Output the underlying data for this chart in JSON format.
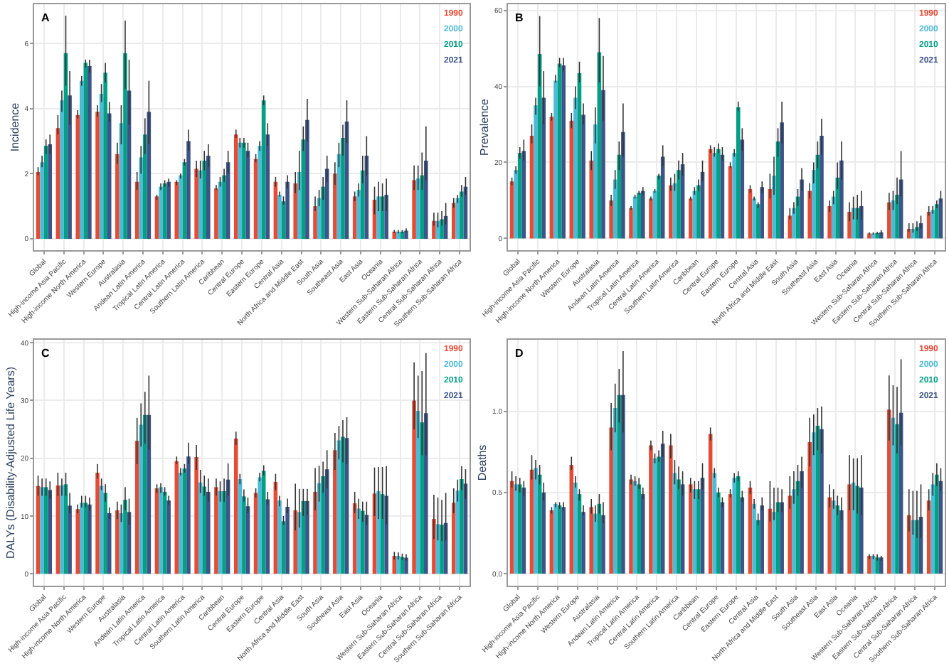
{
  "chart_data": [
    {
      "type": "bar",
      "title": "A",
      "ylabel": "Incidence",
      "grid": true,
      "legend": "top right",
      "categories": [
        "Global",
        "High-income Asia Pacific",
        "High-income North America",
        "Western Europe",
        "Australasia",
        "Andean Latin America",
        "Tropical Latin America",
        "Central Latin America",
        "Southern Latin America",
        "Caribbean",
        "Central Europe",
        "Eastern Europe",
        "Central Asia",
        "North Africa and Middle East",
        "South Asia",
        "Southeast Asia",
        "East Asia",
        "Oceania",
        "Western Sub-Saharan Africa",
        "Eastern Sub-Saharan Africa",
        "Central Sub-Saharan Africa",
        "Southern Sub-Saharan Africa"
      ],
      "ylim": [
        -0.35,
        7.2
      ],
      "yticks": [
        0,
        2,
        4,
        6
      ],
      "series": [
        {
          "name": "1990",
          "color": "#e64b35",
          "values": [
            2.05,
            3.4,
            3.8,
            3.9,
            2.6,
            1.75,
            1.3,
            1.75,
            2.15,
            1.55,
            3.2,
            2.45,
            1.75,
            1.7,
            1.0,
            2.0,
            1.3,
            1.2,
            0.22,
            1.8,
            0.55,
            1.1
          ],
          "errors": [
            [
              1.95,
              2.2
            ],
            [
              3.2,
              3.8
            ],
            [
              3.7,
              3.95
            ],
            [
              3.75,
              4.1
            ],
            [
              2.3,
              2.95
            ],
            [
              1.5,
              2.05
            ],
            [
              1.2,
              1.35
            ],
            [
              1.65,
              1.8
            ],
            [
              1.9,
              2.4
            ],
            [
              1.5,
              1.65
            ],
            [
              3.1,
              3.35
            ],
            [
              2.35,
              2.6
            ],
            [
              1.6,
              1.9
            ],
            [
              1.4,
              2.05
            ],
            [
              0.85,
              1.3
            ],
            [
              1.65,
              2.35
            ],
            [
              1.15,
              1.45
            ],
            [
              0.75,
              1.6
            ],
            [
              0.18,
              0.27
            ],
            [
              1.5,
              2.25
            ],
            [
              0.4,
              0.8
            ],
            [
              0.95,
              1.25
            ]
          ]
        },
        {
          "name": "2000",
          "color": "#4dbbd5",
          "values": [
            2.35,
            4.25,
            4.85,
            4.45,
            3.55,
            2.5,
            1.6,
            1.95,
            2.1,
            1.75,
            2.95,
            2.85,
            1.35,
            2.05,
            1.25,
            2.6,
            1.5,
            1.3,
            0.22,
            1.85,
            0.55,
            1.25
          ],
          "errors": [
            [
              2.2,
              2.55
            ],
            [
              3.9,
              4.55
            ],
            [
              4.7,
              5.0
            ],
            [
              4.2,
              4.75
            ],
            [
              2.9,
              4.1
            ],
            [
              2.0,
              2.85
            ],
            [
              1.5,
              1.7
            ],
            [
              1.85,
              2.0
            ],
            [
              1.85,
              2.4
            ],
            [
              1.6,
              1.9
            ],
            [
              2.8,
              3.1
            ],
            [
              2.7,
              3.0
            ],
            [
              1.3,
              1.45
            ],
            [
              1.5,
              2.7
            ],
            [
              1.0,
              1.5
            ],
            [
              2.2,
              2.95
            ],
            [
              1.3,
              1.7
            ],
            [
              0.85,
              1.75
            ],
            [
              0.17,
              0.27
            ],
            [
              1.5,
              2.25
            ],
            [
              0.35,
              0.8
            ],
            [
              1.1,
              1.35
            ]
          ]
        },
        {
          "name": "2010",
          "color": "#00a087",
          "values": [
            2.85,
            5.7,
            5.4,
            5.1,
            5.7,
            3.2,
            1.7,
            2.35,
            2.4,
            1.95,
            2.95,
            4.25,
            1.15,
            3.05,
            1.6,
            3.1,
            2.1,
            1.3,
            0.22,
            1.95,
            0.6,
            1.45
          ],
          "errors": [
            [
              2.6,
              3.05
            ],
            [
              4.7,
              6.85
            ],
            [
              5.25,
              5.5
            ],
            [
              4.8,
              5.4
            ],
            [
              4.6,
              6.7
            ],
            [
              2.6,
              3.7
            ],
            [
              1.6,
              1.8
            ],
            [
              2.25,
              2.45
            ],
            [
              2.1,
              2.7
            ],
            [
              1.75,
              2.15
            ],
            [
              2.8,
              3.1
            ],
            [
              4.1,
              4.4
            ],
            [
              1.05,
              1.3
            ],
            [
              2.7,
              3.45
            ],
            [
              1.2,
              1.9
            ],
            [
              2.55,
              3.5
            ],
            [
              1.7,
              2.55
            ],
            [
              0.85,
              1.7
            ],
            [
              0.17,
              0.27
            ],
            [
              1.5,
              2.65
            ],
            [
              0.4,
              0.85
            ],
            [
              1.3,
              1.65
            ]
          ]
        },
        {
          "name": "2021",
          "color": "#3c5488",
          "values": [
            2.9,
            4.4,
            5.3,
            3.85,
            4.55,
            3.9,
            1.75,
            3.0,
            2.55,
            2.35,
            2.7,
            3.2,
            1.75,
            3.65,
            2.15,
            3.6,
            2.55,
            1.35,
            0.25,
            2.4,
            0.7,
            1.6
          ],
          "errors": [
            [
              2.6,
              3.2
            ],
            [
              3.5,
              5.15
            ],
            [
              5.1,
              5.5
            ],
            [
              3.6,
              4.2
            ],
            [
              3.5,
              5.5
            ],
            [
              2.9,
              4.85
            ],
            [
              1.6,
              1.85
            ],
            [
              2.7,
              3.35
            ],
            [
              2.2,
              2.9
            ],
            [
              2.0,
              2.7
            ],
            [
              2.5,
              2.95
            ],
            [
              2.85,
              3.55
            ],
            [
              1.55,
              1.95
            ],
            [
              3.0,
              4.3
            ],
            [
              1.75,
              2.55
            ],
            [
              2.95,
              4.25
            ],
            [
              1.95,
              3.15
            ],
            [
              0.85,
              1.85
            ],
            [
              0.2,
              0.32
            ],
            [
              1.8,
              3.45
            ],
            [
              0.45,
              1.1
            ],
            [
              1.35,
              1.9
            ]
          ]
        }
      ]
    },
    {
      "type": "bar",
      "title": "B",
      "ylabel": "Prevalence",
      "grid": true,
      "legend": "top right",
      "categories": [
        "Global",
        "High-income Asia Pacific",
        "High-income North America",
        "Western Europe",
        "Australasia",
        "Andean Latin America",
        "Tropical Latin America",
        "Central Latin America",
        "Southern Latin America",
        "Caribbean",
        "Central Europe",
        "Eastern Europe",
        "Central Asia",
        "North Africa and Middle East",
        "South Asia",
        "Southeast Asia",
        "East Asia",
        "Oceania",
        "Western Sub-Saharan Africa",
        "Eastern Sub-Saharan Africa",
        "Central Sub-Saharan Africa",
        "Southern Sub-Saharan Africa"
      ],
      "ylim": [
        -3.1,
        61.6
      ],
      "yticks": [
        0,
        20,
        40,
        60
      ],
      "series": [
        {
          "name": "1990",
          "color": "#e64b35",
          "values": [
            15,
            27,
            32,
            31,
            20.5,
            10,
            8,
            10.5,
            14,
            10.5,
            23.5,
            19,
            13,
            13,
            6,
            12.5,
            8.5,
            7,
            1.3,
            9.5,
            2.5,
            7
          ],
          "errors": [
            [
              14,
              16
            ],
            [
              25,
              30
            ],
            [
              31,
              33
            ],
            [
              29,
              33
            ],
            [
              18,
              23
            ],
            [
              8.5,
              11.5
            ],
            [
              7.5,
              8.5
            ],
            [
              10,
              11
            ],
            [
              12.5,
              16
            ],
            [
              10,
              11
            ],
            [
              22.5,
              24.5
            ],
            [
              18.5,
              20
            ],
            [
              12,
              14
            ],
            [
              10.5,
              17
            ],
            [
              5,
              8
            ],
            [
              10.5,
              14.5
            ],
            [
              7,
              10
            ],
            [
              4.5,
              9.5
            ],
            [
              1.0,
              1.6
            ],
            [
              7.5,
              12
            ],
            [
              1.8,
              4
            ],
            [
              6,
              8.5
            ]
          ]
        },
        {
          "name": "2000",
          "color": "#4dbbd5",
          "values": [
            18,
            35,
            41.5,
            37,
            30,
            15.5,
            11,
            12.5,
            14.5,
            12.5,
            22.5,
            22.5,
            10.5,
            16.5,
            8,
            18,
            11,
            8,
            1.3,
            10,
            2.5,
            7.5
          ],
          "errors": [
            [
              17,
              19
            ],
            [
              32.5,
              37
            ],
            [
              41,
              43
            ],
            [
              34,
              40
            ],
            [
              25,
              34.5
            ],
            [
              13,
              18
            ],
            [
              10.5,
              11.5
            ],
            [
              12,
              13
            ],
            [
              12.5,
              17
            ],
            [
              11.5,
              13.5
            ],
            [
              21.5,
              24
            ],
            [
              21.5,
              23.5
            ],
            [
              10,
              11
            ],
            [
              11.5,
              21.5
            ],
            [
              6.5,
              9.5
            ],
            [
              14.5,
              20
            ],
            [
              9,
              12.5
            ],
            [
              5,
              11
            ],
            [
              1.0,
              1.6
            ],
            [
              7.5,
              12.5
            ],
            [
              1.5,
              4
            ],
            [
              6.5,
              8.5
            ]
          ]
        },
        {
          "name": "2010",
          "color": "#00a087",
          "values": [
            22.5,
            48.5,
            46,
            43.5,
            49,
            22,
            12,
            16.5,
            18,
            14,
            23.5,
            34.5,
            9,
            25.5,
            11,
            22,
            16,
            8,
            1.4,
            11.5,
            3,
            9
          ],
          "errors": [
            [
              21,
              24
            ],
            [
              40,
              58.5
            ],
            [
              45,
              47.5
            ],
            [
              41,
              46.5
            ],
            [
              41,
              58
            ],
            [
              18,
              25.5
            ],
            [
              11.5,
              12.5
            ],
            [
              15.5,
              17
            ],
            [
              15.5,
              20.5
            ],
            [
              12.5,
              15.5
            ],
            [
              22.5,
              25
            ],
            [
              33.5,
              36
            ],
            [
              8,
              9.5
            ],
            [
              21.5,
              29
            ],
            [
              8.5,
              13
            ],
            [
              18.5,
              25.5
            ],
            [
              13,
              20
            ],
            [
              5,
              11.5
            ],
            [
              1.1,
              1.7
            ],
            [
              9,
              16
            ],
            [
              2,
              4.5
            ],
            [
              8,
              10
            ]
          ]
        },
        {
          "name": "2021",
          "color": "#3c5488",
          "values": [
            23,
            37,
            45.5,
            32.5,
            39,
            28,
            12.5,
            21.5,
            19.5,
            17.5,
            22,
            26,
            13.5,
            30.5,
            15.5,
            27,
            20.5,
            8.5,
            1.6,
            15.5,
            4,
            10.5
          ],
          "errors": [
            [
              20.5,
              26
            ],
            [
              30,
              44
            ],
            [
              44,
              47.5
            ],
            [
              30,
              35.5
            ],
            [
              31,
              48
            ],
            [
              21.5,
              35.5
            ],
            [
              11.5,
              13.5
            ],
            [
              19,
              24.5
            ],
            [
              16.5,
              22.5
            ],
            [
              15,
              20.5
            ],
            [
              20.5,
              24
            ],
            [
              23,
              29
            ],
            [
              12,
              15
            ],
            [
              25,
              36
            ],
            [
              12.5,
              18.5
            ],
            [
              22,
              31.5
            ],
            [
              15.5,
              25.5
            ],
            [
              5,
              12.5
            ],
            [
              1.2,
              2.2
            ],
            [
              11,
              23
            ],
            [
              2.5,
              6
            ],
            [
              9.5,
              12.5
            ]
          ]
        }
      ]
    },
    {
      "type": "bar",
      "title": "C",
      "ylabel": "DALYs (Disability-Adjusted Life Years)",
      "grid": true,
      "legend": "top right",
      "categories": [
        "Global",
        "High-income Asia Pacific",
        "High-income North America",
        "Western Europe",
        "Australasia",
        "Andean Latin America",
        "Tropical Latin America",
        "Central Latin America",
        "Southern Latin America",
        "Caribbean",
        "Central Europe",
        "Eastern Europe",
        "Central Asia",
        "North Africa and Middle East",
        "South Asia",
        "Southeast Asia",
        "East Asia",
        "Oceania",
        "Western Sub-Saharan Africa",
        "Eastern Sub-Saharan Africa",
        "Central Sub-Saharan Africa",
        "Southern Sub-Saharan Africa"
      ],
      "ylim": [
        -2.05,
        40.5
      ],
      "yticks": [
        0,
        10,
        20,
        30,
        40
      ],
      "series": [
        {
          "name": "1990",
          "color": "#e64b35",
          "values": [
            15.2,
            15.3,
            11.2,
            17.5,
            11,
            23,
            14.8,
            19.5,
            20.2,
            15,
            23.4,
            14,
            15.9,
            11,
            14.2,
            21.4,
            12.2,
            13.9,
            3.1,
            30,
            9.5,
            12.3
          ],
          "errors": [
            [
              13.5,
              17
            ],
            [
              13.5,
              17.5
            ],
            [
              10.5,
              12
            ],
            [
              16.5,
              19
            ],
            [
              9.5,
              12.5
            ],
            [
              19,
              27
            ],
            [
              14,
              15.5
            ],
            [
              19,
              20.3
            ],
            [
              18,
              22.3
            ],
            [
              13.5,
              16.5
            ],
            [
              22.3,
              24.6
            ],
            [
              13.2,
              14.8
            ],
            [
              14.5,
              17.3
            ],
            [
              7.5,
              15.6
            ],
            [
              11,
              18.3
            ],
            [
              18,
              24.4
            ],
            [
              10.5,
              14.2
            ],
            [
              10,
              18.4
            ],
            [
              2.5,
              3.8
            ],
            [
              25,
              36.6
            ],
            [
              6,
              13.7
            ],
            [
              10.5,
              14.8
            ]
          ]
        },
        {
          "name": "2000",
          "color": "#4dbbd5",
          "values": [
            15,
            15.3,
            12.3,
            15.2,
            10.5,
            25.8,
            15,
            17.5,
            15.8,
            14.3,
            16.4,
            16.7,
            12.7,
            10.7,
            15.7,
            23.1,
            11.3,
            14.3,
            3.1,
            28.2,
            8.6,
            14.4
          ],
          "errors": [
            [
              13.5,
              16.5
            ],
            [
              13.5,
              16.5
            ],
            [
              11.5,
              13.5
            ],
            [
              14.5,
              16.5
            ],
            [
              9,
              12
            ],
            [
              22,
              29.5
            ],
            [
              14,
              15.7
            ],
            [
              17,
              18.3
            ],
            [
              14,
              18
            ],
            [
              12.5,
              16
            ],
            [
              15.5,
              17.3
            ],
            [
              16,
              17.5
            ],
            [
              11.7,
              13.5
            ],
            [
              8,
              14.7
            ],
            [
              12.5,
              18.7
            ],
            [
              19.8,
              25.6
            ],
            [
              9.5,
              13
            ],
            [
              9.5,
              18.5
            ],
            [
              2.5,
              3.7
            ],
            [
              23.5,
              34.3
            ],
            [
              5.8,
              13.2
            ],
            [
              12.5,
              16.3
            ]
          ]
        },
        {
          "name": "2010",
          "color": "#00a087",
          "values": [
            15,
            15.5,
            12.3,
            14,
            12.8,
            27.5,
            14.2,
            18.2,
            15.1,
            14.3,
            13.4,
            17.8,
            9.1,
            12.6,
            16.9,
            23.7,
            10.9,
            13.8,
            2.9,
            26.2,
            8.5,
            16.4
          ],
          "errors": [
            [
              13.5,
              16.5
            ],
            [
              13.5,
              17.5
            ],
            [
              11.5,
              13.5
            ],
            [
              12.5,
              15.5
            ],
            [
              11,
              15
            ],
            [
              22.5,
              31.5
            ],
            [
              13.5,
              15
            ],
            [
              17.5,
              19
            ],
            [
              13.5,
              17
            ],
            [
              12.5,
              16.5
            ],
            [
              12.5,
              14.6
            ],
            [
              17,
              18.8
            ],
            [
              8.5,
              10
            ],
            [
              10,
              14.7
            ],
            [
              14,
              19.4
            ],
            [
              19.3,
              26.6
            ],
            [
              9,
              12.5
            ],
            [
              9.5,
              18.5
            ],
            [
              2.4,
              3.5
            ],
            [
              20.5,
              35.1
            ],
            [
              5.7,
              12.8
            ],
            [
              14.5,
              18.6
            ]
          ]
        },
        {
          "name": "2021",
          "color": "#3c5488",
          "values": [
            14.5,
            11.8,
            12,
            10.5,
            10.7,
            27.5,
            12.7,
            20.3,
            14.2,
            16.3,
            11.7,
            12.9,
            11.6,
            12.6,
            18.1,
            23.5,
            10.2,
            13.5,
            2.8,
            27.8,
            8.8,
            15.6
          ],
          "errors": [
            [
              13,
              16
            ],
            [
              10.5,
              14
            ],
            [
              11,
              13.2
            ],
            [
              9.5,
              11.5
            ],
            [
              8.5,
              13
            ],
            [
              21.5,
              34.3
            ],
            [
              12,
              13.5
            ],
            [
              19,
              22.7
            ],
            [
              12.5,
              16.5
            ],
            [
              13.5,
              19.1
            ],
            [
              10.5,
              13.2
            ],
            [
              12,
              14.2
            ],
            [
              10.5,
              13
            ],
            [
              10.2,
              14.7
            ],
            [
              14.8,
              21.4
            ],
            [
              19,
              27.1
            ],
            [
              8.5,
              12.5
            ],
            [
              8.6,
              18.6
            ],
            [
              2.3,
              3.4
            ],
            [
              20.5,
              38.2
            ],
            [
              5.8,
              14
            ],
            [
              13,
              18.1
            ]
          ]
        }
      ]
    },
    {
      "type": "bar",
      "title": "D",
      "ylabel": "Deaths",
      "grid": true,
      "legend": "top right",
      "categories": [
        "Global",
        "High-income Asia Pacific",
        "High-income North America",
        "Western Europe",
        "Australasia",
        "Andean Latin America",
        "Tropical Latin America",
        "Central Latin America",
        "Southern Latin America",
        "Caribbean",
        "Central Europe",
        "Eastern Europe",
        "Central Asia",
        "North Africa and Middle East",
        "South Asia",
        "Southeast Asia",
        "East Asia",
        "Oceania",
        "Western Sub-Saharan Africa",
        "Eastern Sub-Saharan Africa",
        "Central Sub-Saharan Africa",
        "Southern Sub-Saharan Africa"
      ],
      "ylim": [
        -0.074,
        1.44
      ],
      "yticks": [
        {
          "value": 0,
          "label": "0.0"
        },
        {
          "value": 0.5,
          "label": "0.5"
        },
        {
          "value": 1,
          "label": "1.0"
        }
      ],
      "series": [
        {
          "name": "1990",
          "color": "#e64b35",
          "values": [
            0.57,
            0.64,
            0.39,
            0.67,
            0.41,
            0.9,
            0.58,
            0.79,
            0.79,
            0.55,
            0.86,
            0.49,
            0.53,
            0.4,
            0.48,
            0.81,
            0.47,
            0.55,
            0.11,
            1.01,
            0.36,
            0.45
          ],
          "errors": [
            [
              0.53,
              0.63
            ],
            [
              0.58,
              0.73
            ],
            [
              0.37,
              0.41
            ],
            [
              0.64,
              0.72
            ],
            [
              0.37,
              0.46
            ],
            [
              0.76,
              1.05
            ],
            [
              0.55,
              0.61
            ],
            [
              0.76,
              0.82
            ],
            [
              0.71,
              0.86
            ],
            [
              0.5,
              0.59
            ],
            [
              0.82,
              0.9
            ],
            [
              0.47,
              0.52
            ],
            [
              0.49,
              0.57
            ],
            [
              0.32,
              0.57
            ],
            [
              0.4,
              0.6
            ],
            [
              0.66,
              0.96
            ],
            [
              0.41,
              0.55
            ],
            [
              0.39,
              0.73
            ],
            [
              0.09,
              0.12
            ],
            [
              0.82,
              1.22
            ],
            [
              0.26,
              0.52
            ],
            [
              0.39,
              0.52
            ]
          ]
        },
        {
          "name": "2000",
          "color": "#4dbbd5",
          "values": [
            0.55,
            0.65,
            0.43,
            0.56,
            0.37,
            1.02,
            0.57,
            0.71,
            0.62,
            0.52,
            0.62,
            0.59,
            0.43,
            0.38,
            0.52,
            0.87,
            0.45,
            0.56,
            0.11,
            0.96,
            0.33,
            0.55
          ],
          "errors": [
            [
              0.51,
              0.6
            ],
            [
              0.58,
              0.7
            ],
            [
              0.41,
              0.44
            ],
            [
              0.53,
              0.6
            ],
            [
              0.32,
              0.42
            ],
            [
              0.87,
              1.17
            ],
            [
              0.54,
              0.6
            ],
            [
              0.68,
              0.74
            ],
            [
              0.55,
              0.7
            ],
            [
              0.46,
              0.57
            ],
            [
              0.59,
              0.65
            ],
            [
              0.56,
              0.62
            ],
            [
              0.4,
              0.46
            ],
            [
              0.33,
              0.53
            ],
            [
              0.43,
              0.63
            ],
            [
              0.73,
              0.98
            ],
            [
              0.4,
              0.52
            ],
            [
              0.39,
              0.71
            ],
            [
              0.09,
              0.12
            ],
            [
              0.79,
              1.16
            ],
            [
              0.24,
              0.51
            ],
            [
              0.48,
              0.62
            ]
          ]
        },
        {
          "name": "2010",
          "color": "#00a087",
          "values": [
            0.55,
            0.61,
            0.42,
            0.49,
            0.43,
            1.1,
            0.55,
            0.72,
            0.58,
            0.52,
            0.5,
            0.6,
            0.33,
            0.44,
            0.57,
            0.91,
            0.42,
            0.54,
            0.1,
            0.92,
            0.33,
            0.61
          ],
          "errors": [
            [
              0.5,
              0.59
            ],
            [
              0.55,
              0.67
            ],
            [
              0.4,
              0.44
            ],
            [
              0.45,
              0.52
            ],
            [
              0.37,
              0.49
            ],
            [
              0.93,
              1.26
            ],
            [
              0.52,
              0.59
            ],
            [
              0.69,
              0.76
            ],
            [
              0.52,
              0.66
            ],
            [
              0.46,
              0.57
            ],
            [
              0.47,
              0.53
            ],
            [
              0.57,
              0.63
            ],
            [
              0.3,
              0.37
            ],
            [
              0.38,
              0.53
            ],
            [
              0.48,
              0.67
            ],
            [
              0.76,
              1.02
            ],
            [
              0.36,
              0.48
            ],
            [
              0.37,
              0.71
            ],
            [
              0.08,
              0.12
            ],
            [
              0.74,
              1.15
            ],
            [
              0.22,
              0.51
            ],
            [
              0.54,
              0.68
            ]
          ]
        },
        {
          "name": "2021",
          "color": "#3c5488",
          "values": [
            0.53,
            0.5,
            0.41,
            0.38,
            0.36,
            1.1,
            0.49,
            0.8,
            0.55,
            0.59,
            0.44,
            0.47,
            0.42,
            0.44,
            0.63,
            0.89,
            0.39,
            0.53,
            0.1,
            0.99,
            0.35,
            0.57
          ],
          "errors": [
            [
              0.48,
              0.57
            ],
            [
              0.45,
              0.56
            ],
            [
              0.39,
              0.44
            ],
            [
              0.36,
              0.42
            ],
            [
              0.31,
              0.44
            ],
            [
              0.87,
              1.37
            ],
            [
              0.46,
              0.53
            ],
            [
              0.72,
              0.88
            ],
            [
              0.48,
              0.63
            ],
            [
              0.52,
              0.68
            ],
            [
              0.41,
              0.47
            ],
            [
              0.44,
              0.51
            ],
            [
              0.39,
              0.47
            ],
            [
              0.38,
              0.52
            ],
            [
              0.53,
              0.72
            ],
            [
              0.74,
              1.03
            ],
            [
              0.33,
              0.47
            ],
            [
              0.36,
              0.73
            ],
            [
              0.08,
              0.11
            ],
            [
              0.79,
              1.32
            ],
            [
              0.22,
              0.55
            ],
            [
              0.51,
              0.65
            ]
          ]
        }
      ]
    }
  ]
}
